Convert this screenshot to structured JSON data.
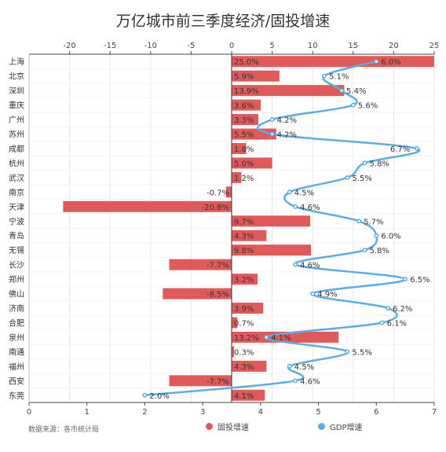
{
  "title": "万亿城市前三季度经济/固投增速",
  "source": "数据来源：各市统计局",
  "legend": {
    "fai_label": "固投增速",
    "gdp_label": "GDP增速"
  },
  "colors": {
    "fai": "#e05a5a",
    "gdp": "#5aaee3",
    "grid": "#e6e6e6",
    "axis": "#444444"
  },
  "chart_data": {
    "type": "bar",
    "title": "万亿城市前三季度经济/固投增速",
    "categories": [
      "上海",
      "北京",
      "深圳",
      "重庆",
      "广州",
      "苏州",
      "成都",
      "杭州",
      "武汉",
      "南京",
      "天津",
      "宁波",
      "青岛",
      "无锡",
      "长沙",
      "郑州",
      "佛山",
      "济南",
      "合肥",
      "泉州",
      "南通",
      "福州",
      "西安",
      "东莞"
    ],
    "fai_label_texts": [
      "25.0%",
      "5.9%",
      "13.9%",
      "3.6%",
      "3.3%",
      "5.5%",
      "1.8%",
      "5.0%",
      "1.2%",
      "-0.7%",
      "-20.8%",
      "9.7%",
      "4.3%",
      "9.8%",
      "-7.7%",
      "3.2%",
      "-8.5%",
      "3.9%",
      "0.7%",
      "13.2%",
      "0.3%",
      "4.3%",
      "-7.7%",
      "4.1%"
    ],
    "gdp_label_texts": [
      "6.0%",
      "5.1%",
      "5.4%",
      "5.6%",
      "4.2%",
      "4.2%",
      "6.7%",
      "5.8%",
      "5.5%",
      "4.5%",
      "4.6%",
      "5.7%",
      "6.0%",
      "5.8%",
      "4.6%",
      "6.5%",
      "4.9%",
      "6.2%",
      "6.1%",
      "4.1%",
      "5.5%",
      "4.5%",
      "4.6%",
      "2.0%"
    ],
    "series": [
      {
        "name": "固投增速",
        "type": "bar",
        "axis": "top",
        "values": [
          25.0,
          5.9,
          13.9,
          3.6,
          3.3,
          5.5,
          1.8,
          5.0,
          1.2,
          -0.7,
          -20.8,
          9.7,
          4.3,
          9.8,
          -7.7,
          3.2,
          -8.5,
          3.9,
          0.7,
          13.2,
          0.3,
          4.3,
          -7.7,
          4.1
        ]
      },
      {
        "name": "GDP增速",
        "type": "line",
        "axis": "bottom",
        "values": [
          6.0,
          5.1,
          5.4,
          5.6,
          4.2,
          4.2,
          6.7,
          5.8,
          5.5,
          4.5,
          4.6,
          5.7,
          6.0,
          5.8,
          4.6,
          6.5,
          4.9,
          6.2,
          6.1,
          4.1,
          5.5,
          4.5,
          4.6,
          2.0
        ]
      }
    ],
    "top_axis": {
      "min": -25,
      "max": 25,
      "ticks": [
        -20,
        -15,
        -10,
        -5,
        0,
        5,
        10,
        15,
        20,
        25
      ]
    },
    "bottom_axis": {
      "min": 0,
      "max": 7,
      "ticks": [
        0,
        1,
        2,
        3,
        4,
        5,
        6,
        7
      ]
    },
    "grid": true,
    "legend_position": "bottom"
  }
}
